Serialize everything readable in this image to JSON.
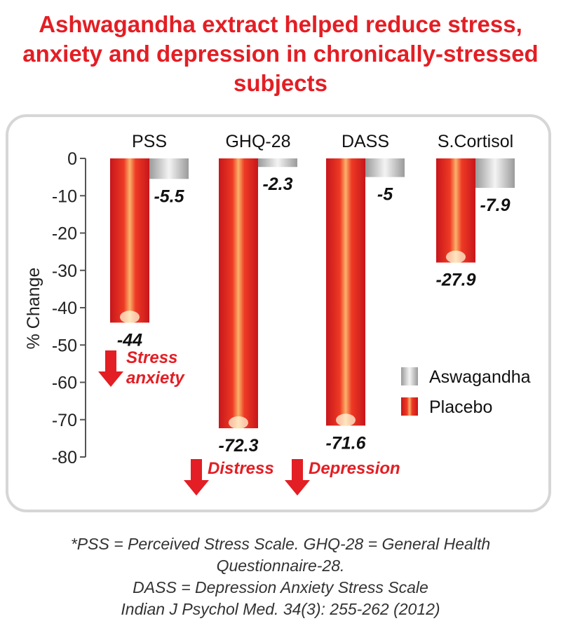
{
  "title_lines": [
    "Ashwagandha extract helped reduce stress,",
    "anxiety and depression in chronically-stressed",
    "subjects"
  ],
  "footnote_lines": [
    "*PSS = Perceived Stress Scale. GHQ-28 = General Health",
    "Questionnaire-28.",
    "DASS = Depression Anxiety Stress Scale",
    "Indian J Psychol Med. 34(3): 255-262 (2012)"
  ],
  "colors": {
    "title": "#e31e24",
    "placebo": "#e31e24",
    "ashwagandha": "#b5b5b5",
    "annotation": "#e31e24"
  },
  "chart_data": {
    "type": "bar",
    "categories": [
      "PSS",
      "GHQ-28",
      "DASS",
      "S.Cortisol"
    ],
    "series": [
      {
        "name": "Placebo",
        "values": [
          -44,
          -72.3,
          -71.6,
          -27.9
        ]
      },
      {
        "name": "Aswagandha",
        "values": [
          -5.5,
          -2.3,
          -5,
          -7.9
        ]
      }
    ],
    "value_labels": {
      "Placebo": [
        "-44",
        "-72.3",
        "-71.6",
        "-27.9"
      ],
      "Aswagandha": [
        "-5.5",
        "-2.3",
        "-5",
        "-7.9"
      ]
    },
    "ylabel": "% Change",
    "ylim": [
      -80,
      0
    ],
    "yticks": [
      0,
      -10,
      -20,
      -30,
      -40,
      -50,
      -60,
      -70,
      -80
    ],
    "legend": {
      "position": "right",
      "entries": [
        "Aswagandha",
        "Placebo"
      ]
    },
    "annotations": [
      {
        "category": "PSS",
        "lines": [
          "Stress",
          "anxiety"
        ]
      },
      {
        "category": "GHQ-28",
        "lines": [
          "Distress"
        ]
      },
      {
        "category": "DASS",
        "lines": [
          "Depression"
        ]
      }
    ]
  }
}
